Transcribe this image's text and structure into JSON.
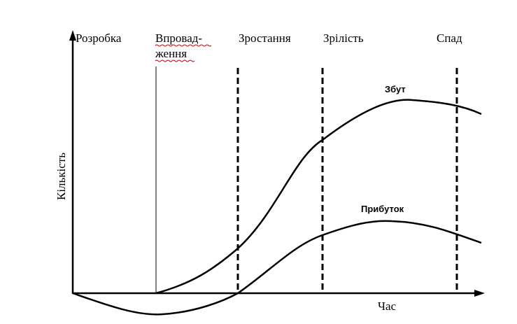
{
  "stages": {
    "development": "Розробка",
    "introduction_line1": "Впровад-",
    "introduction_line2": "ження",
    "growth": "Зростання",
    "maturity": "Зрілість",
    "decline": "Спад"
  },
  "axes": {
    "y_label": "Кількість",
    "x_label": "Час"
  },
  "curves": {
    "sales_label": "Збут",
    "profit_label": "Прибуток"
  },
  "colors": {
    "ink": "#000000",
    "spellcheck_underline": "#c00000"
  }
}
